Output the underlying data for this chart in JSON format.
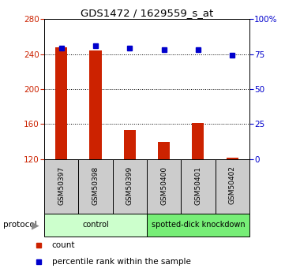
{
  "title": "GDS1472 / 1629559_s_at",
  "samples": [
    "GSM50397",
    "GSM50398",
    "GSM50399",
    "GSM50400",
    "GSM50401",
    "GSM50402"
  ],
  "counts": [
    248,
    244,
    153,
    140,
    161,
    122
  ],
  "percentile_ranks": [
    79,
    81,
    79,
    78,
    78,
    74
  ],
  "ymin": 120,
  "ymax": 280,
  "yticks_left": [
    120,
    160,
    200,
    240,
    280
  ],
  "yticks_right": [
    0,
    25,
    50,
    75,
    100
  ],
  "bar_color": "#cc2200",
  "dot_color": "#0000cc",
  "protocol_groups": [
    {
      "label": "control",
      "start": 0,
      "end": 3,
      "color": "#ccffcc"
    },
    {
      "label": "spotted-dick knockdown",
      "start": 3,
      "end": 6,
      "color": "#77ee77"
    }
  ],
  "xlabel_area_color": "#cccccc",
  "legend_items": [
    {
      "color": "#cc2200",
      "label": "count"
    },
    {
      "color": "#0000cc",
      "label": "percentile rank within the sample"
    }
  ]
}
